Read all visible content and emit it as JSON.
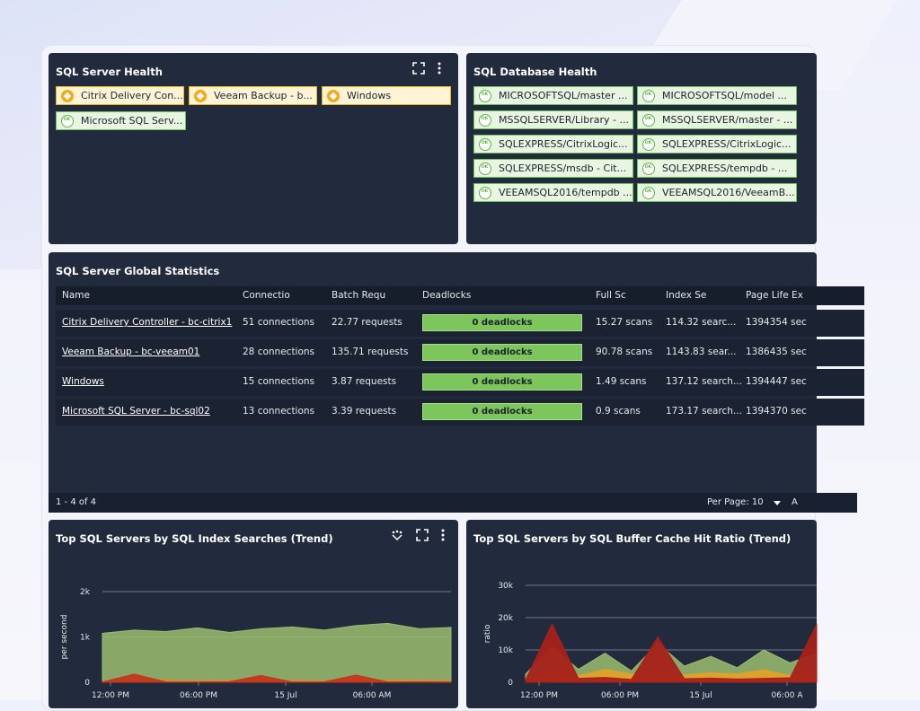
{
  "health": {
    "title": "SQL Server Health",
    "tiles": [
      {
        "label": "Citrix Delivery Con...",
        "status": "warning"
      },
      {
        "label": "Veeam Backup - b...",
        "status": "warning"
      },
      {
        "label": "Windows",
        "status": "warning"
      },
      {
        "label": "Microsoft SQL Serv...",
        "status": "ok"
      }
    ]
  },
  "db_health": {
    "title": "SQL Database Health",
    "tiles": [
      {
        "label": "MICROSOFTSQL/master ..."
      },
      {
        "label": "MICROSOFTSQL/model ..."
      },
      {
        "label": "MSSQLSERVER/Library - ..."
      },
      {
        "label": "MSSQLSERVER/master - ..."
      },
      {
        "label": "SQLEXPRESS/CitrixLogic..."
      },
      {
        "label": "SQLEXPRESS/CitrixLogic..."
      },
      {
        "label": "SQLEXPRESS/msdb - Cit..."
      },
      {
        "label": "SQLEXPRESS/tempdb - ..."
      },
      {
        "label": "VEEAMSQL2016/tempdb ..."
      },
      {
        "label": "VEEAMSQL2016/VeeamB..."
      }
    ]
  },
  "stats": {
    "title": "SQL Server Global Statistics",
    "columns": [
      "Name",
      "Connectio",
      "Batch Requ",
      "Deadlocks",
      "Full Sc",
      "Index Se",
      "Page Life Ex"
    ],
    "rows": [
      {
        "name": "Citrix Delivery Controller - bc-citrix1",
        "connections": "51 connections",
        "batch": "22.77 requests",
        "deadlocks": "0 deadlocks",
        "full": "15.27 scans",
        "index": "114.32 searc...",
        "page": "1394354 sec"
      },
      {
        "name": "Veeam Backup - bc-veeam01",
        "connections": "28 connections",
        "batch": "135.71 requests",
        "deadlocks": "0 deadlocks",
        "full": "90.78 scans",
        "index": "1143.83 sear...",
        "page": "1386435 sec"
      },
      {
        "name": "Windows",
        "connections": "15 connections",
        "batch": "3.87 requests",
        "deadlocks": "0 deadlocks",
        "full": "1.49 scans",
        "index": "137.12 search...",
        "page": "1394447 sec"
      },
      {
        "name": "Microsoft SQL Server - bc-sql02",
        "connections": "13 connections",
        "batch": "3.39 requests",
        "deadlocks": "0 deadlocks",
        "full": "0.9 scans",
        "index": "173.17 search...",
        "page": "1394370 sec"
      }
    ],
    "footer_range": "1 - 4 of 4",
    "per_page_label": "Per Page: 10",
    "per_page_suffix": "A"
  },
  "chart_data": [
    {
      "type": "area",
      "title": "Top SQL Servers by SQL Index Searches (Trend)",
      "ylabel": "per second",
      "xlabel": "",
      "ylim": [
        0,
        2000
      ],
      "y_ticks": [
        "0",
        "1k",
        "2k"
      ],
      "x_ticks": [
        "12:00 PM",
        "06:00 PM",
        "15 Jul",
        "06:00 AM"
      ],
      "series": [
        {
          "color": "#9bbd6f",
          "values": [
            1080,
            1150,
            1120,
            1200,
            1100,
            1180,
            1220,
            1150,
            1250,
            1300,
            1180,
            1210
          ]
        },
        {
          "color": "#e08a2a",
          "values": [
            40,
            35,
            50,
            30,
            45,
            60,
            40,
            35,
            50,
            45,
            40,
            38
          ]
        },
        {
          "color": "#c4361c",
          "values": [
            5,
            180,
            10,
            8,
            12,
            150,
            6,
            10,
            160,
            8,
            9,
            7
          ]
        }
      ],
      "grid": true
    },
    {
      "type": "area",
      "title": "Top SQL Servers by SQL Buffer Cache Hit Ratio (Trend)",
      "ylabel": "ratio",
      "xlabel": "",
      "ylim": [
        0,
        30000
      ],
      "y_ticks": [
        "0",
        "10k",
        "20k",
        "30k"
      ],
      "x_ticks": [
        "12:00 PM",
        "06:00 PM",
        "15 Jul",
        "06:00 A"
      ],
      "series": [
        {
          "color": "#9bbd6f",
          "values": [
            2500,
            11000,
            4000,
            9000,
            3500,
            12000,
            5000,
            8000,
            4500,
            10000,
            6000,
            9000
          ]
        },
        {
          "color": "#e0a12a",
          "values": [
            1500,
            3000,
            2000,
            4000,
            2500,
            3500,
            2200,
            3000,
            2600,
            3800,
            2100,
            3200
          ]
        },
        {
          "color": "#a8201a",
          "values": [
            800,
            18000,
            1200,
            1500,
            900,
            14000,
            1100,
            1300,
            1000,
            1200,
            1400,
            18000
          ]
        }
      ],
      "grid": true
    }
  ]
}
